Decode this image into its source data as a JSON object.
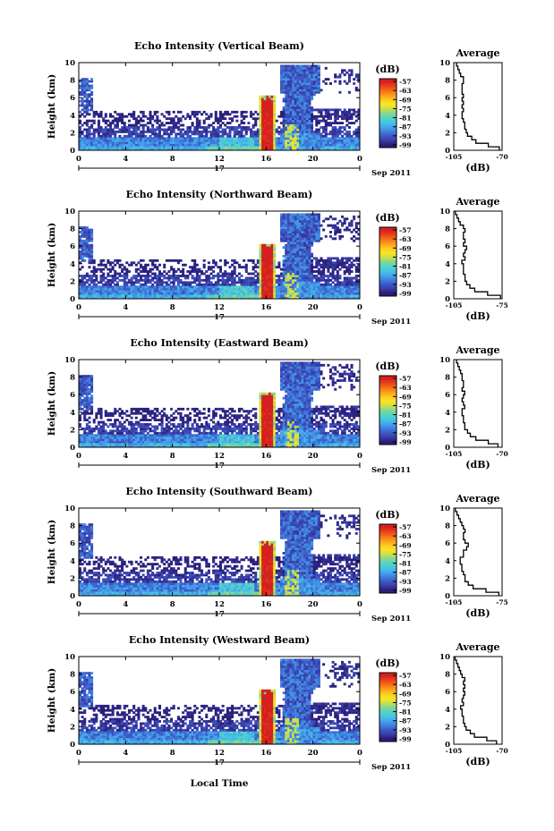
{
  "figure": {
    "footer_label": "Local Time"
  },
  "chart_data": [
    {
      "type": "heatmap",
      "title": "Echo Intensity (Vertical Beam)",
      "beam": "vertical",
      "ylabel": "Height (km)",
      "ylim": [
        0,
        10
      ],
      "xlim": [
        0,
        24
      ],
      "x_ticks": [
        "0",
        "4",
        "8",
        "12",
        "16",
        "20",
        "0"
      ],
      "y_ticks": [
        "0",
        "2",
        "4",
        "6",
        "8",
        "10"
      ],
      "day_label": "17",
      "date_label": "Sep 2011",
      "colorbar": {
        "unit": "(dB)",
        "ticks": [
          "-57",
          "-63",
          "-69",
          "-75",
          "-81",
          "-87",
          "-93",
          "-99"
        ]
      },
      "profile": {
        "title": "Average",
        "xlabel": "(dB)",
        "xlim": [
          -105,
          -70
        ],
        "x_ticks": [
          "-105",
          "-70"
        ],
        "y_ticks": [
          "0",
          "2",
          "4",
          "6",
          "8",
          "10"
        ],
        "heights": [
          0.2,
          0.6,
          1.0,
          1.4,
          1.8,
          2.2,
          2.6,
          3.0,
          3.4,
          3.8,
          4.2,
          4.6,
          5.0,
          5.4,
          5.8,
          6.2,
          6.6,
          7.0,
          7.4,
          7.8,
          8.2,
          8.6,
          9.0,
          9.4,
          9.8
        ],
        "values": [
          -72,
          -80,
          -89,
          -92,
          -95,
          -96,
          -97,
          -97,
          -98,
          -99,
          -99,
          -98,
          -99,
          -98,
          -99,
          -98,
          -99,
          -99,
          -99,
          -98,
          -98,
          -100,
          -101,
          -102,
          -103
        ]
      }
    },
    {
      "type": "heatmap",
      "title": "Echo Intensity (Northward Beam)",
      "beam": "northward",
      "ylabel": "Height (km)",
      "ylim": [
        0,
        10
      ],
      "xlim": [
        0,
        24
      ],
      "x_ticks": [
        "0",
        "4",
        "8",
        "12",
        "16",
        "20",
        "0"
      ],
      "y_ticks": [
        "0",
        "2",
        "4",
        "6",
        "8",
        "10"
      ],
      "day_label": "17",
      "date_label": "Sep 2011",
      "colorbar": {
        "unit": "(dB)",
        "ticks": [
          "-57",
          "-63",
          "-69",
          "-75",
          "-81",
          "-87",
          "-93",
          "-99"
        ]
      },
      "profile": {
        "title": "Average",
        "xlabel": "(dB)",
        "xlim": [
          -105,
          -75
        ],
        "x_ticks": [
          "-105",
          "-75"
        ],
        "y_ticks": [
          "0",
          "2",
          "4",
          "6",
          "8",
          "10"
        ],
        "heights": [
          0.2,
          0.6,
          1.0,
          1.4,
          1.8,
          2.2,
          2.6,
          3.0,
          3.4,
          3.8,
          4.2,
          4.6,
          5.0,
          5.4,
          5.8,
          6.2,
          6.6,
          7.0,
          7.4,
          7.8,
          8.2,
          8.6,
          9.0,
          9.4,
          9.8
        ],
        "values": [
          -76,
          -84,
          -92,
          -95,
          -97,
          -98,
          -98,
          -99,
          -99,
          -99,
          -100,
          -98,
          -99,
          -98,
          -97,
          -99,
          -98,
          -99,
          -99,
          -98,
          -99,
          -101,
          -102,
          -103,
          -104
        ]
      }
    },
    {
      "type": "heatmap",
      "title": "Echo Intensity (Eastward Beam)",
      "beam": "eastward",
      "ylabel": "Height (km)",
      "ylim": [
        0,
        10
      ],
      "xlim": [
        0,
        24
      ],
      "x_ticks": [
        "0",
        "4",
        "8",
        "12",
        "16",
        "20",
        "0"
      ],
      "y_ticks": [
        "0",
        "2",
        "4",
        "6",
        "8",
        "10"
      ],
      "day_label": "17",
      "date_label": "Sep 2011",
      "colorbar": {
        "unit": "(dB)",
        "ticks": [
          "-57",
          "-63",
          "-69",
          "-75",
          "-81",
          "-87",
          "-93",
          "-99"
        ]
      },
      "profile": {
        "title": "Average",
        "xlabel": "(dB)",
        "xlim": [
          -105,
          -70
        ],
        "x_ticks": [
          "-105",
          "-70"
        ],
        "y_ticks": [
          "0",
          "2",
          "4",
          "6",
          "8",
          "10"
        ],
        "heights": [
          0.2,
          0.6,
          1.0,
          1.4,
          1.8,
          2.2,
          2.6,
          3.0,
          3.4,
          3.8,
          4.2,
          4.6,
          5.0,
          5.4,
          5.8,
          6.2,
          6.6,
          7.0,
          7.4,
          7.8,
          8.2,
          8.6,
          9.0,
          9.4,
          9.8
        ],
        "values": [
          -73,
          -80,
          -89,
          -93,
          -95,
          -97,
          -97,
          -98,
          -98,
          -99,
          -99,
          -97,
          -98,
          -99,
          -98,
          -97,
          -99,
          -98,
          -98,
          -99,
          -99,
          -100,
          -101,
          -102,
          -103
        ]
      }
    },
    {
      "type": "heatmap",
      "title": "Echo Intensity (Southward Beam)",
      "beam": "southward",
      "ylabel": "Height (km)",
      "ylim": [
        0,
        10
      ],
      "xlim": [
        0,
        24
      ],
      "x_ticks": [
        "0",
        "4",
        "8",
        "12",
        "16",
        "20",
        "0"
      ],
      "y_ticks": [
        "0",
        "2",
        "4",
        "6",
        "8",
        "10"
      ],
      "day_label": "17",
      "date_label": "Sep 2011",
      "colorbar": {
        "unit": "(dB)",
        "ticks": [
          "-57",
          "-63",
          "-69",
          "-75",
          "-81",
          "-87",
          "-93",
          "-99"
        ]
      },
      "profile": {
        "title": "Average",
        "xlabel": "(dB)",
        "xlim": [
          -105,
          -75
        ],
        "x_ticks": [
          "-105",
          "-75"
        ],
        "y_ticks": [
          "0",
          "2",
          "4",
          "6",
          "8",
          "10"
        ],
        "heights": [
          0.2,
          0.6,
          1.0,
          1.4,
          1.8,
          2.2,
          2.6,
          3.0,
          3.4,
          3.8,
          4.2,
          4.6,
          5.0,
          5.4,
          5.8,
          6.2,
          6.6,
          7.0,
          7.4,
          7.8,
          8.2,
          8.6,
          9.0,
          9.4,
          9.8
        ],
        "values": [
          -77,
          -85,
          -93,
          -96,
          -98,
          -98,
          -99,
          -100,
          -100,
          -101,
          -101,
          -99,
          -99,
          -97,
          -96,
          -98,
          -99,
          -99,
          -98,
          -99,
          -100,
          -101,
          -102,
          -103,
          -104
        ]
      }
    },
    {
      "type": "heatmap",
      "title": "Echo Intensity (Westward Beam)",
      "beam": "westward",
      "ylabel": "Height (km)",
      "ylim": [
        0,
        10
      ],
      "xlim": [
        0,
        24
      ],
      "x_ticks": [
        "0",
        "4",
        "8",
        "12",
        "16",
        "20",
        "0"
      ],
      "y_ticks": [
        "0",
        "2",
        "4",
        "6",
        "8",
        "10"
      ],
      "day_label": "17",
      "date_label": "Sep 2011",
      "colorbar": {
        "unit": "(dB)",
        "ticks": [
          "-57",
          "-63",
          "-69",
          "-75",
          "-81",
          "-87",
          "-93",
          "-99"
        ]
      },
      "profile": {
        "title": "Average",
        "xlabel": "(dB)",
        "xlim": [
          -105,
          -70
        ],
        "x_ticks": [
          "-105",
          "-70"
        ],
        "y_ticks": [
          "0",
          "2",
          "4",
          "6",
          "8",
          "10"
        ],
        "heights": [
          0.2,
          0.6,
          1.0,
          1.4,
          1.8,
          2.2,
          2.6,
          3.0,
          3.4,
          3.8,
          4.2,
          4.6,
          5.0,
          5.4,
          5.8,
          6.2,
          6.6,
          7.0,
          7.4,
          7.8,
          8.2,
          8.6,
          9.0,
          9.4,
          9.8
        ],
        "values": [
          -74,
          -81,
          -90,
          -93,
          -96,
          -97,
          -98,
          -98,
          -99,
          -99,
          -100,
          -98,
          -99,
          -98,
          -97,
          -98,
          -97,
          -98,
          -97,
          -99,
          -100,
          -101,
          -102,
          -103,
          -104
        ]
      }
    }
  ]
}
